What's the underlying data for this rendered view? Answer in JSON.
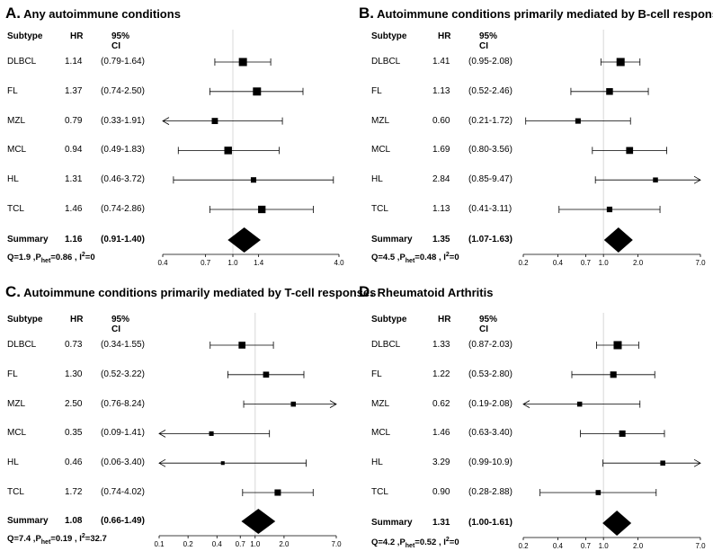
{
  "chart_data": [
    {
      "type": "forest",
      "letter": "A.",
      "title": "Any autoimmune conditions",
      "headers": {
        "subtype": "Subtype",
        "hr": "HR",
        "ci": "95% CI"
      },
      "xscale": "log",
      "xlim": [
        0.4,
        4.0
      ],
      "ticks": [
        0.4,
        0.7,
        1.0,
        1.4,
        4.0
      ],
      "tick_labels": [
        "0.4",
        "0.7",
        "1.0",
        "1.4",
        "4.0"
      ],
      "rows": [
        {
          "subtype": "DLBCL",
          "hr_text": "1.14",
          "ci_text": "(0.79-1.64)",
          "hr": 1.14,
          "lo": 0.79,
          "hi": 1.64
        },
        {
          "subtype": "FL",
          "hr_text": "1.37",
          "ci_text": "(0.74-2.50)",
          "hr": 1.37,
          "lo": 0.74,
          "hi": 2.5
        },
        {
          "subtype": "MZL",
          "hr_text": "0.79",
          "ci_text": "(0.33-1.91)",
          "hr": 0.79,
          "lo": 0.33,
          "hi": 1.91
        },
        {
          "subtype": "MCL",
          "hr_text": "0.94",
          "ci_text": "(0.49-1.83)",
          "hr": 0.94,
          "lo": 0.49,
          "hi": 1.83
        },
        {
          "subtype": "HL",
          "hr_text": "1.31",
          "ci_text": "(0.46-3.72)",
          "hr": 1.31,
          "lo": 0.46,
          "hi": 3.72
        },
        {
          "subtype": "TCL",
          "hr_text": "1.46",
          "ci_text": "(0.74-2.86)",
          "hr": 1.46,
          "lo": 0.74,
          "hi": 2.86
        }
      ],
      "summary": {
        "label": "Summary",
        "hr_text": "1.16",
        "ci_text": "(0.91-1.40)",
        "hr": 1.16,
        "lo": 0.91,
        "hi": 1.4
      },
      "stats": {
        "q": "Q=1.9",
        "p_label": "P",
        "p_sub": "het",
        "p_value": "=0.86",
        "i_label": "I",
        "i_sup": "2",
        "i_value": "=0"
      }
    },
    {
      "type": "forest",
      "letter": "B.",
      "title": "Autoimmune conditions primarily mediated by B-cell responses",
      "headers": {
        "subtype": "Subtype",
        "hr": "HR",
        "ci": "95% CI"
      },
      "xscale": "log",
      "xlim": [
        0.2,
        7.0
      ],
      "ticks": [
        0.2,
        0.4,
        0.7,
        1.0,
        2.0,
        7.0
      ],
      "tick_labels": [
        "0.2",
        "0.4",
        "0.7",
        "1.0",
        "2.0",
        "7.0"
      ],
      "rows": [
        {
          "subtype": "DLBCL",
          "hr_text": "1.41",
          "ci_text": "(0.95-2.08)",
          "hr": 1.41,
          "lo": 0.95,
          "hi": 2.08
        },
        {
          "subtype": "FL",
          "hr_text": "1.13",
          "ci_text": "(0.52-2.46)",
          "hr": 1.13,
          "lo": 0.52,
          "hi": 2.46
        },
        {
          "subtype": "MZL",
          "hr_text": "0.60",
          "ci_text": "(0.21-1.72)",
          "hr": 0.6,
          "lo": 0.21,
          "hi": 1.72
        },
        {
          "subtype": "MCL",
          "hr_text": "1.69",
          "ci_text": "(0.80-3.56)",
          "hr": 1.69,
          "lo": 0.8,
          "hi": 3.56
        },
        {
          "subtype": "HL",
          "hr_text": "2.84",
          "ci_text": "(0.85-9.47)",
          "hr": 2.84,
          "lo": 0.85,
          "hi": 9.47
        },
        {
          "subtype": "TCL",
          "hr_text": "1.13",
          "ci_text": "(0.41-3.11)",
          "hr": 1.13,
          "lo": 0.41,
          "hi": 3.11
        }
      ],
      "summary": {
        "label": "Summary",
        "hr_text": "1.35",
        "ci_text": "(1.07-1.63)",
        "hr": 1.35,
        "lo": 1.07,
        "hi": 1.63
      },
      "stats": {
        "q": "Q=4.5",
        "p_label": "P",
        "p_sub": "het",
        "p_value": "=0.48",
        "i_label": "I",
        "i_sup": "2",
        "i_value": "=0"
      }
    },
    {
      "type": "forest",
      "letter": "C.",
      "title": "Autoimmune conditions primarily mediated by T-cell responses",
      "headers": {
        "subtype": "Subtype",
        "hr": "HR",
        "ci": "95% CI"
      },
      "xscale": "log",
      "xlim": [
        0.1,
        7.0
      ],
      "ticks": [
        0.1,
        0.2,
        0.4,
        0.7,
        1.0,
        2.0,
        7.0
      ],
      "tick_labels": [
        "0.1",
        "0.2",
        "0.4",
        "0.7",
        "1.0",
        "2.0",
        "7.0"
      ],
      "rows": [
        {
          "subtype": "DLBCL",
          "hr_text": "0.73",
          "ci_text": "(0.34-1.55)",
          "hr": 0.73,
          "lo": 0.34,
          "hi": 1.55
        },
        {
          "subtype": "FL",
          "hr_text": "1.30",
          "ci_text": "(0.52-3.22)",
          "hr": 1.3,
          "lo": 0.52,
          "hi": 3.22
        },
        {
          "subtype": "MZL",
          "hr_text": "2.50",
          "ci_text": "(0.76-8.24)",
          "hr": 2.5,
          "lo": 0.76,
          "hi": 8.24
        },
        {
          "subtype": "MCL",
          "hr_text": "0.35",
          "ci_text": "(0.09-1.41)",
          "hr": 0.35,
          "lo": 0.09,
          "hi": 1.41
        },
        {
          "subtype": "HL",
          "hr_text": "0.46",
          "ci_text": "(0.06-3.40)",
          "hr": 0.46,
          "lo": 0.06,
          "hi": 3.4
        },
        {
          "subtype": "TCL",
          "hr_text": "1.72",
          "ci_text": "(0.74-4.02)",
          "hr": 1.72,
          "lo": 0.74,
          "hi": 4.02
        }
      ],
      "summary": {
        "label": "Summary",
        "hr_text": "1.08",
        "ci_text": "(0.66-1.49)",
        "hr": 1.08,
        "lo": 0.66,
        "hi": 1.49
      },
      "stats": {
        "q": "Q=7.4",
        "p_label": "P",
        "p_sub": "het",
        "p_value": "=0.19",
        "i_label": "I",
        "i_sup": "2",
        "i_value": "=32.7"
      }
    },
    {
      "type": "forest",
      "letter": "D.",
      "title": "Rheumatoid Arthritis",
      "headers": {
        "subtype": "Subtype",
        "hr": "HR",
        "ci": "95% CI"
      },
      "xscale": "log",
      "xlim": [
        0.2,
        7.0
      ],
      "ticks": [
        0.2,
        0.4,
        0.7,
        1.0,
        2.0,
        7.0
      ],
      "tick_labels": [
        "0.2",
        "0.4",
        "0.7",
        "1.0",
        "2.0",
        "7.0"
      ],
      "rows": [
        {
          "subtype": "DLBCL",
          "hr_text": "1.33",
          "ci_text": "(0.87-2.03)",
          "hr": 1.33,
          "lo": 0.87,
          "hi": 2.03
        },
        {
          "subtype": "FL",
          "hr_text": "1.22",
          "ci_text": "(0.53-2.80)",
          "hr": 1.22,
          "lo": 0.53,
          "hi": 2.8
        },
        {
          "subtype": "MZL",
          "hr_text": "0.62",
          "ci_text": "(0.19-2.08)",
          "hr": 0.62,
          "lo": 0.19,
          "hi": 2.08
        },
        {
          "subtype": "MCL",
          "hr_text": "1.46",
          "ci_text": "(0.63-3.40)",
          "hr": 1.46,
          "lo": 0.63,
          "hi": 3.4
        },
        {
          "subtype": "HL",
          "hr_text": "3.29",
          "ci_text": "(0.99-10.9)",
          "hr": 3.29,
          "lo": 0.99,
          "hi": 10.9
        },
        {
          "subtype": "TCL",
          "hr_text": "0.90",
          "ci_text": "(0.28-2.88)",
          "hr": 0.9,
          "lo": 0.28,
          "hi": 2.88
        }
      ],
      "summary": {
        "label": "Summary",
        "hr_text": "1.31",
        "ci_text": "(1.00-1.61)",
        "hr": 1.31,
        "lo": 1.0,
        "hi": 1.61
      },
      "stats": {
        "q": "Q=4.2",
        "p_label": "P",
        "p_sub": "het",
        "p_value": "=0.52",
        "i_label": "I",
        "i_sup": "2",
        "i_value": "=0"
      }
    }
  ]
}
